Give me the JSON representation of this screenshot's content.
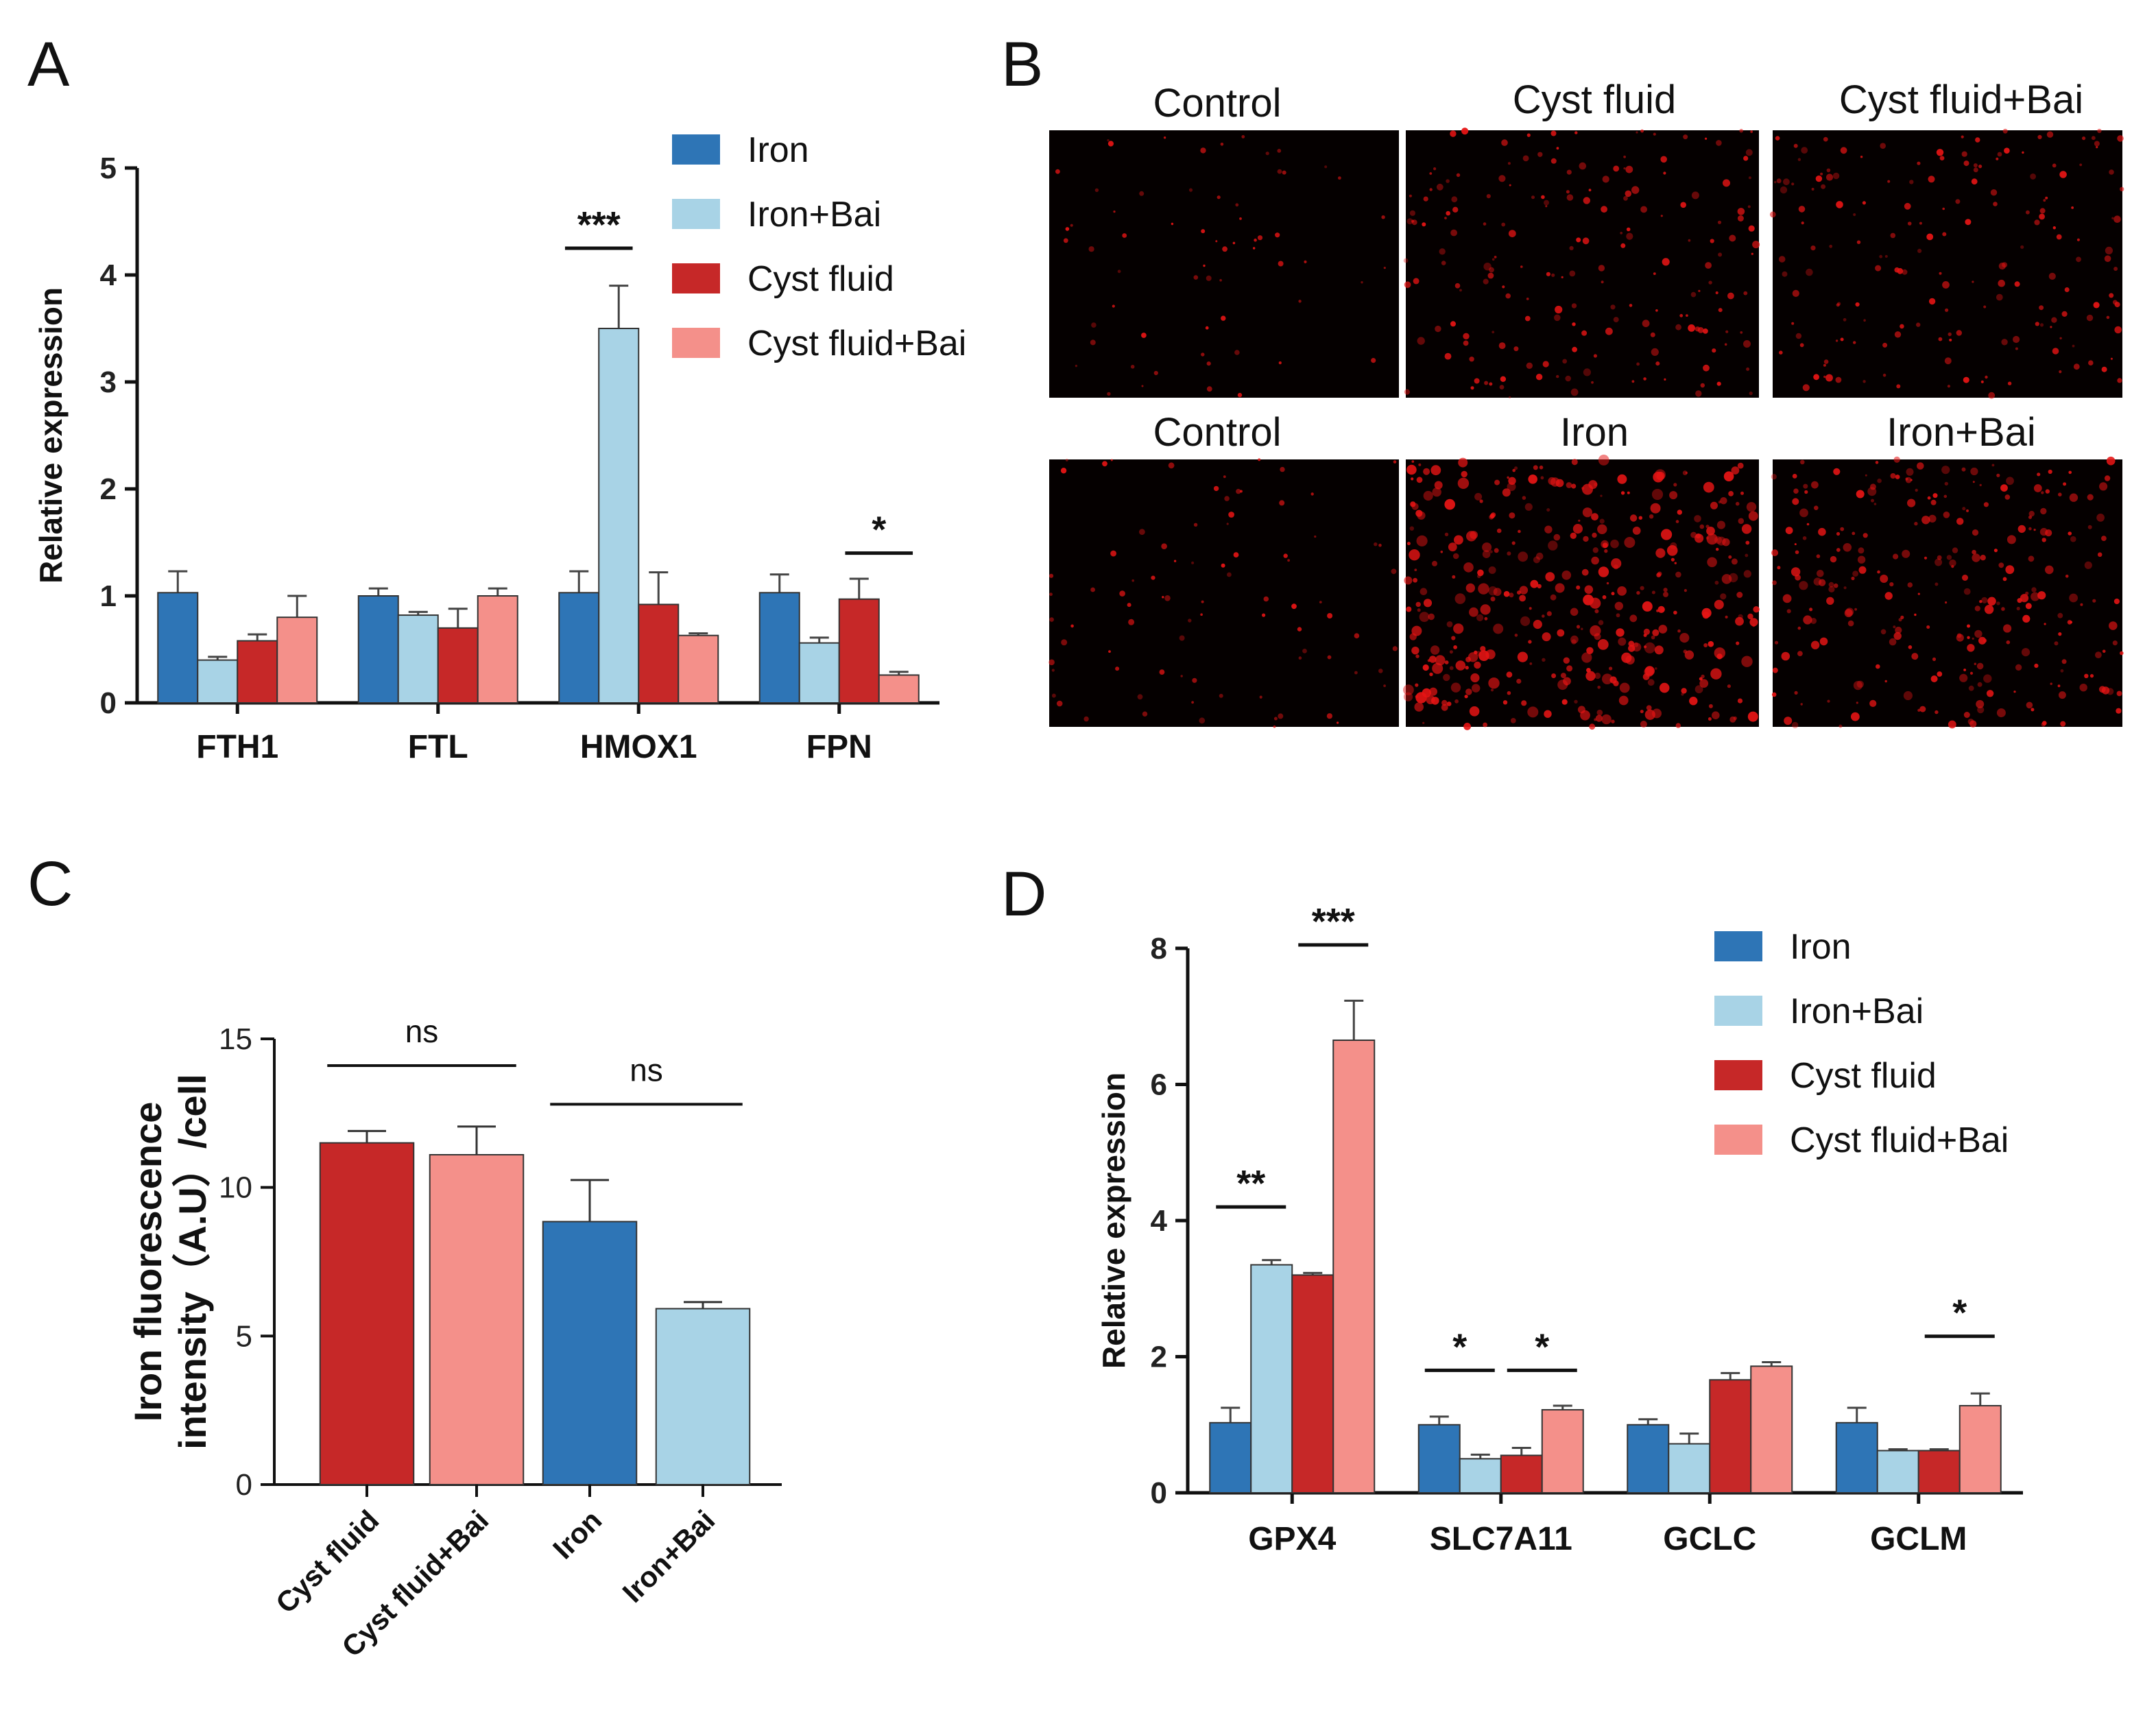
{
  "panels": {
    "A": "A",
    "B": "B",
    "C": "C",
    "D": "D"
  },
  "colors": {
    "Iron": "#2e75b6",
    "Iron+Bai": "#a8d3e6",
    "Cyst fluid": "#c62828",
    "Cyst fluid+Bai": "#f4908a"
  },
  "chart_data": [
    {
      "id": "A",
      "type": "bar",
      "ylabel": "Relative expression",
      "ylim": [
        0,
        5
      ],
      "yticks": [
        0,
        1,
        2,
        3,
        4,
        5
      ],
      "categories": [
        "FTH1",
        "FTL",
        "HMOX1",
        "FPN"
      ],
      "legend": [
        "Iron",
        "Iron+Bai",
        "Cyst fluid",
        "Cyst fluid+Bai"
      ],
      "series": [
        {
          "name": "Iron",
          "values": [
            1.03,
            1.0,
            1.03,
            1.03
          ],
          "errors": [
            0.2,
            0.07,
            0.2,
            0.17
          ]
        },
        {
          "name": "Iron+Bai",
          "values": [
            0.4,
            0.82,
            3.5,
            0.56
          ],
          "errors": [
            0.03,
            0.03,
            0.4,
            0.05
          ]
        },
        {
          "name": "Cyst fluid",
          "values": [
            0.58,
            0.7,
            0.92,
            0.97
          ],
          "errors": [
            0.06,
            0.18,
            0.3,
            0.19
          ]
        },
        {
          "name": "Cyst fluid+Bai",
          "values": [
            0.8,
            1.0,
            0.63,
            0.26
          ],
          "errors": [
            0.2,
            0.07,
            0.02,
            0.03
          ]
        }
      ],
      "annotations": [
        {
          "text": "***",
          "category": 2,
          "from": 0,
          "to": 1,
          "y": 4.25
        },
        {
          "text": "*",
          "category": 3,
          "from": 2,
          "to": 3,
          "y": 1.4
        }
      ]
    },
    {
      "id": "C",
      "type": "bar",
      "ylabel_line1": "Iron fluorescence",
      "ylabel_line2": "intensity（A.U）/cell",
      "ylim": [
        0,
        15
      ],
      "yticks": [
        0,
        5,
        10,
        15
      ],
      "categories": [
        "Cyst fluid",
        "Cyst fluid+Bai",
        "Iron",
        "Iron+Bai"
      ],
      "values": [
        11.5,
        11.1,
        8.85,
        5.92
      ],
      "errors": [
        0.4,
        0.95,
        1.4,
        0.22
      ],
      "annotations": [
        {
          "text": "ns",
          "from": 0,
          "to": 1,
          "y": 14.1
        },
        {
          "text": "ns",
          "from": 2,
          "to": 3,
          "y": 12.8
        }
      ]
    },
    {
      "id": "D",
      "type": "bar",
      "ylabel": "Relative expression",
      "ylim": [
        0,
        8
      ],
      "yticks": [
        0,
        2,
        4,
        6,
        8
      ],
      "categories": [
        "GPX4",
        "SLC7A11",
        "GCLC",
        "GCLM"
      ],
      "legend": [
        "Iron",
        "Iron+Bai",
        "Cyst fluid",
        "Cyst fluid+Bai"
      ],
      "series": [
        {
          "name": "Iron",
          "values": [
            1.03,
            1.0,
            1.0,
            1.03
          ],
          "errors": [
            0.22,
            0.12,
            0.08,
            0.22
          ]
        },
        {
          "name": "Iron+Bai",
          "values": [
            3.35,
            0.5,
            0.72,
            0.62
          ],
          "errors": [
            0.07,
            0.06,
            0.15,
            0.02
          ]
        },
        {
          "name": "Cyst fluid",
          "values": [
            3.2,
            0.55,
            1.66,
            0.62
          ],
          "errors": [
            0.03,
            0.11,
            0.1,
            0.02
          ]
        },
        {
          "name": "Cyst fluid+Bai",
          "values": [
            6.65,
            1.22,
            1.86,
            1.28
          ],
          "errors": [
            0.58,
            0.06,
            0.06,
            0.18
          ]
        }
      ],
      "annotations": [
        {
          "text": "**",
          "category": 0,
          "from": 0,
          "to": 1,
          "y": 4.2
        },
        {
          "text": "***",
          "category": 0,
          "from": 2,
          "to": 3,
          "y": 8.05
        },
        {
          "text": "*",
          "category": 1,
          "from": 0,
          "to": 1,
          "y": 1.8
        },
        {
          "text": "*",
          "category": 1,
          "from": 2,
          "to": 3,
          "y": 1.8
        },
        {
          "text": "*",
          "category": 3,
          "from": 2,
          "to": 3,
          "y": 2.3
        }
      ]
    }
  ],
  "microscopy": {
    "top_labels": [
      "Control",
      "Cyst fluid",
      "Cyst fluid+Bai"
    ],
    "bottom_labels": [
      "Control",
      "Iron",
      "Iron+Bai"
    ],
    "spot_density": [
      0.15,
      0.45,
      0.42,
      0.2,
      0.95,
      0.65
    ]
  }
}
